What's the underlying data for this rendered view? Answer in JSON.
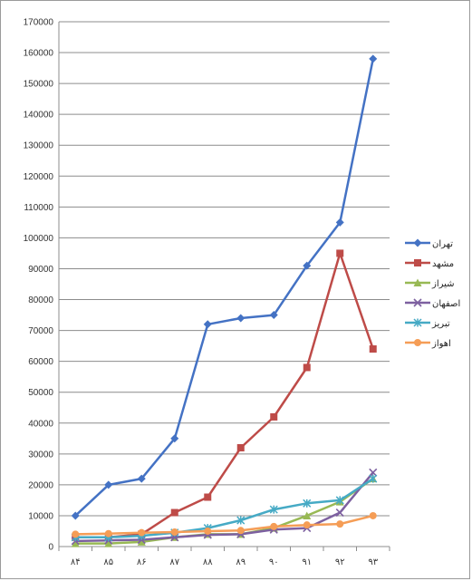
{
  "chart_data": {
    "type": "line",
    "title": "",
    "xlabel": "",
    "ylabel": "",
    "categories": [
      "۸۴",
      "۸۵",
      "۸۶",
      "۸۷",
      "۸۸",
      "۸۹",
      "۹۰",
      "۹۱",
      "۹۲",
      "۹۳"
    ],
    "ylim": [
      0,
      170000
    ],
    "yticks": [
      "0",
      "10000",
      "20000",
      "30000",
      "40000",
      "50000",
      "60000",
      "70000",
      "80000",
      "90000",
      "100000",
      "110000",
      "120000",
      "130000",
      "140000",
      "150000",
      "160000",
      "170000"
    ],
    "grid": "horizontal",
    "legend_position": "right",
    "series": [
      {
        "name": "تهران",
        "color": "#4472C4",
        "marker": "diamond",
        "values": [
          10000,
          20000,
          22000,
          35000,
          72000,
          74000,
          75000,
          91000,
          105000,
          158000
        ]
      },
      {
        "name": "مشهد",
        "color": "#BE4B48",
        "marker": "square",
        "values": [
          3000,
          3000,
          4000,
          11000,
          16000,
          32000,
          42000,
          58000,
          95000,
          64000
        ]
      },
      {
        "name": "شیراز",
        "color": "#98B954",
        "marker": "triangle",
        "values": [
          1000,
          1000,
          1500,
          3000,
          4000,
          4000,
          6000,
          10000,
          14500,
          22000
        ]
      },
      {
        "name": "اصفهان",
        "color": "#7D60A0",
        "marker": "x",
        "values": [
          1800,
          2000,
          2200,
          3000,
          3800,
          4000,
          5500,
          6000,
          11000,
          24000
        ]
      },
      {
        "name": "تبریز",
        "color": "#46AAC5",
        "marker": "star",
        "values": [
          3000,
          3000,
          3500,
          4500,
          6000,
          8500,
          12000,
          14000,
          15000,
          22000
        ]
      },
      {
        "name": "اهواز",
        "color": "#F59D56",
        "marker": "circle",
        "values": [
          4000,
          4200,
          4500,
          4700,
          5000,
          5200,
          6500,
          7000,
          7300,
          10000
        ]
      }
    ]
  }
}
